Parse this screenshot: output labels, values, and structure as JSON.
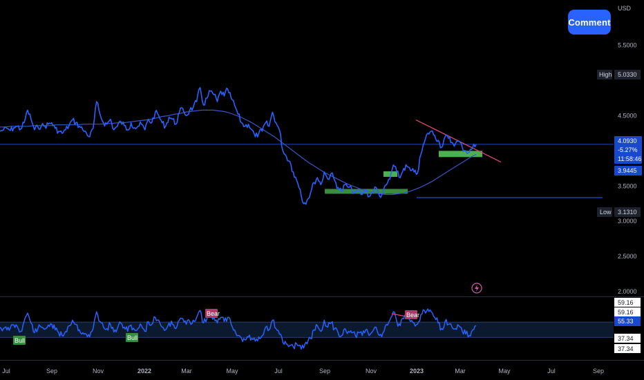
{
  "currency": "USD",
  "comment_button": "Comment",
  "colors": {
    "background": "#000000",
    "price_line": "#2962ff",
    "ma_line": "#3a55c8",
    "grid_text": "#b2b5be",
    "demand_zone": "#388e3c",
    "small_zone": "#4caf50",
    "trendline": "#e0457b",
    "price_tag": "#1848cc",
    "bull": "#388e3c",
    "bear": "#b0386a"
  },
  "chart_data": [
    {
      "type": "line",
      "name": "price-chart",
      "y_axis_ticks": [
        "5.5000",
        "4.5000",
        "3.5000",
        "3.0000",
        "2.5000",
        "2.0000"
      ],
      "ylim": [
        2.0,
        5.85
      ],
      "x_axis_ticks": [
        "Jul",
        "Sep",
        "Nov",
        "2022",
        "Mar",
        "May",
        "Jul",
        "Sep",
        "Nov",
        "2023",
        "Mar",
        "May",
        "Jul",
        "Sep"
      ],
      "x_period": [
        "2021-07",
        "2023-10"
      ],
      "price_series": [
        4.28,
        4.3,
        4.32,
        4.29,
        4.33,
        4.35,
        4.31,
        4.4,
        4.58,
        4.45,
        4.3,
        4.34,
        4.36,
        4.35,
        4.38,
        4.4,
        4.32,
        4.28,
        4.25,
        4.3,
        4.36,
        4.44,
        4.4,
        4.35,
        4.3,
        4.26,
        4.2,
        4.32,
        4.7,
        4.52,
        4.4,
        4.38,
        4.45,
        4.3,
        4.35,
        4.42,
        4.36,
        4.3,
        4.4,
        4.33,
        4.35,
        4.38,
        4.3,
        4.45,
        4.4,
        4.55,
        4.5,
        4.4,
        4.35,
        4.48,
        4.45,
        4.38,
        4.55,
        4.6,
        4.5,
        4.58,
        4.62,
        4.7,
        4.9,
        4.65,
        4.75,
        4.85,
        4.8,
        4.7,
        4.85,
        4.78,
        4.88,
        4.75,
        4.65,
        4.52,
        4.4,
        4.35,
        4.38,
        4.3,
        4.2,
        4.25,
        4.28,
        4.4,
        4.35,
        4.55,
        4.4,
        4.3,
        4.0,
        3.92,
        3.85,
        3.7,
        3.58,
        3.45,
        3.25,
        3.3,
        3.4,
        3.55,
        3.62,
        3.52,
        3.7,
        3.6,
        3.68,
        3.58,
        3.48,
        3.42,
        3.52,
        3.48,
        3.45,
        3.4,
        3.42,
        3.38,
        3.45,
        3.35,
        3.42,
        3.48,
        3.36,
        3.4,
        3.52,
        3.6,
        3.8,
        3.7,
        3.62,
        3.75,
        3.78,
        3.72,
        3.7,
        3.68,
        3.95,
        4.12,
        4.25,
        4.28,
        4.22,
        4.15,
        4.05,
        4.2,
        4.18,
        4.12,
        4.1,
        4.14,
        4.05,
        4.0,
        3.98,
        4.05,
        4.09
      ],
      "ma_series": [
        4.34,
        4.34,
        4.35,
        4.35,
        4.35,
        4.35,
        4.36,
        4.36,
        4.36,
        4.36,
        4.37,
        4.37,
        4.37,
        4.37,
        4.37,
        4.38,
        4.38,
        4.38,
        4.38,
        4.39,
        4.39,
        4.4,
        4.4,
        4.41,
        4.42,
        4.43,
        4.44,
        4.45,
        4.47,
        4.49,
        4.5,
        4.52,
        4.53,
        4.55,
        4.56,
        4.57,
        4.58,
        4.58,
        4.58,
        4.57,
        4.56,
        4.54,
        4.51,
        4.48,
        4.44,
        4.4,
        4.35,
        4.3,
        4.25,
        4.2,
        4.14,
        4.08,
        4.02,
        3.96,
        3.9,
        3.84,
        3.79,
        3.74,
        3.69,
        3.65,
        3.61,
        3.57,
        3.53,
        3.5,
        3.47,
        3.44,
        3.42,
        3.4,
        3.39,
        3.38,
        3.38,
        3.39,
        3.4,
        3.42,
        3.45,
        3.48,
        3.52,
        3.56,
        3.61,
        3.66,
        3.71,
        3.76,
        3.81,
        3.86,
        3.91,
        3.95
      ],
      "ma_start_index": 0,
      "last_close": 4.093,
      "high": 5.033,
      "low": 3.131,
      "level_line": 3.9445,
      "demand_zone": [
        3.38,
        3.42
      ],
      "small_zone": [
        3.63,
        3.68
      ],
      "recent_zone": [
        3.97,
        4.03
      ],
      "trendline": [
        4.48,
        3.92
      ],
      "labels": {
        "high_label": "High",
        "high_value": "5.0330",
        "low_label": "Low",
        "low_value": "3.1310",
        "last_value": "4.0930",
        "change_pct": "-5.27%",
        "countdown": "11:58:46",
        "level_value": "3.9445"
      }
    },
    {
      "type": "line",
      "name": "rsi-panel",
      "rsi_series": [
        52,
        50,
        48,
        51,
        55,
        53,
        46,
        60,
        72,
        58,
        44,
        50,
        52,
        49,
        55,
        56,
        48,
        44,
        40,
        46,
        54,
        62,
        56,
        48,
        44,
        42,
        38,
        50,
        74,
        60,
        52,
        50,
        56,
        45,
        50,
        58,
        52,
        46,
        55,
        48,
        50,
        54,
        46,
        60,
        56,
        66,
        62,
        52,
        48,
        58,
        56,
        50,
        62,
        64,
        56,
        60,
        62,
        66,
        76,
        58,
        64,
        70,
        66,
        58,
        66,
        60,
        66,
        56,
        48,
        40,
        36,
        34,
        38,
        36,
        32,
        38,
        40,
        52,
        48,
        62,
        50,
        42,
        30,
        28,
        26,
        24,
        28,
        26,
        22,
        28,
        36,
        48,
        54,
        46,
        62,
        52,
        58,
        50,
        44,
        40,
        50,
        46,
        44,
        40,
        44,
        40,
        48,
        40,
        46,
        52,
        40,
        44,
        56,
        62,
        74,
        60,
        54,
        64,
        66,
        60,
        58,
        56,
        70,
        76,
        78,
        74,
        66,
        58,
        50,
        60,
        56,
        52,
        50,
        54,
        46,
        42,
        40,
        48,
        54
      ],
      "levels": [
        "59.16",
        "59.16",
        "37.34",
        "37.34"
      ],
      "current_value": "55.33",
      "badges": [
        {
          "text": "Bull",
          "index": 6
        },
        {
          "text": "Bull",
          "index": 60
        },
        {
          "text": "Bear",
          "index": 85
        },
        {
          "text": "Bear",
          "index": 172
        }
      ]
    }
  ]
}
